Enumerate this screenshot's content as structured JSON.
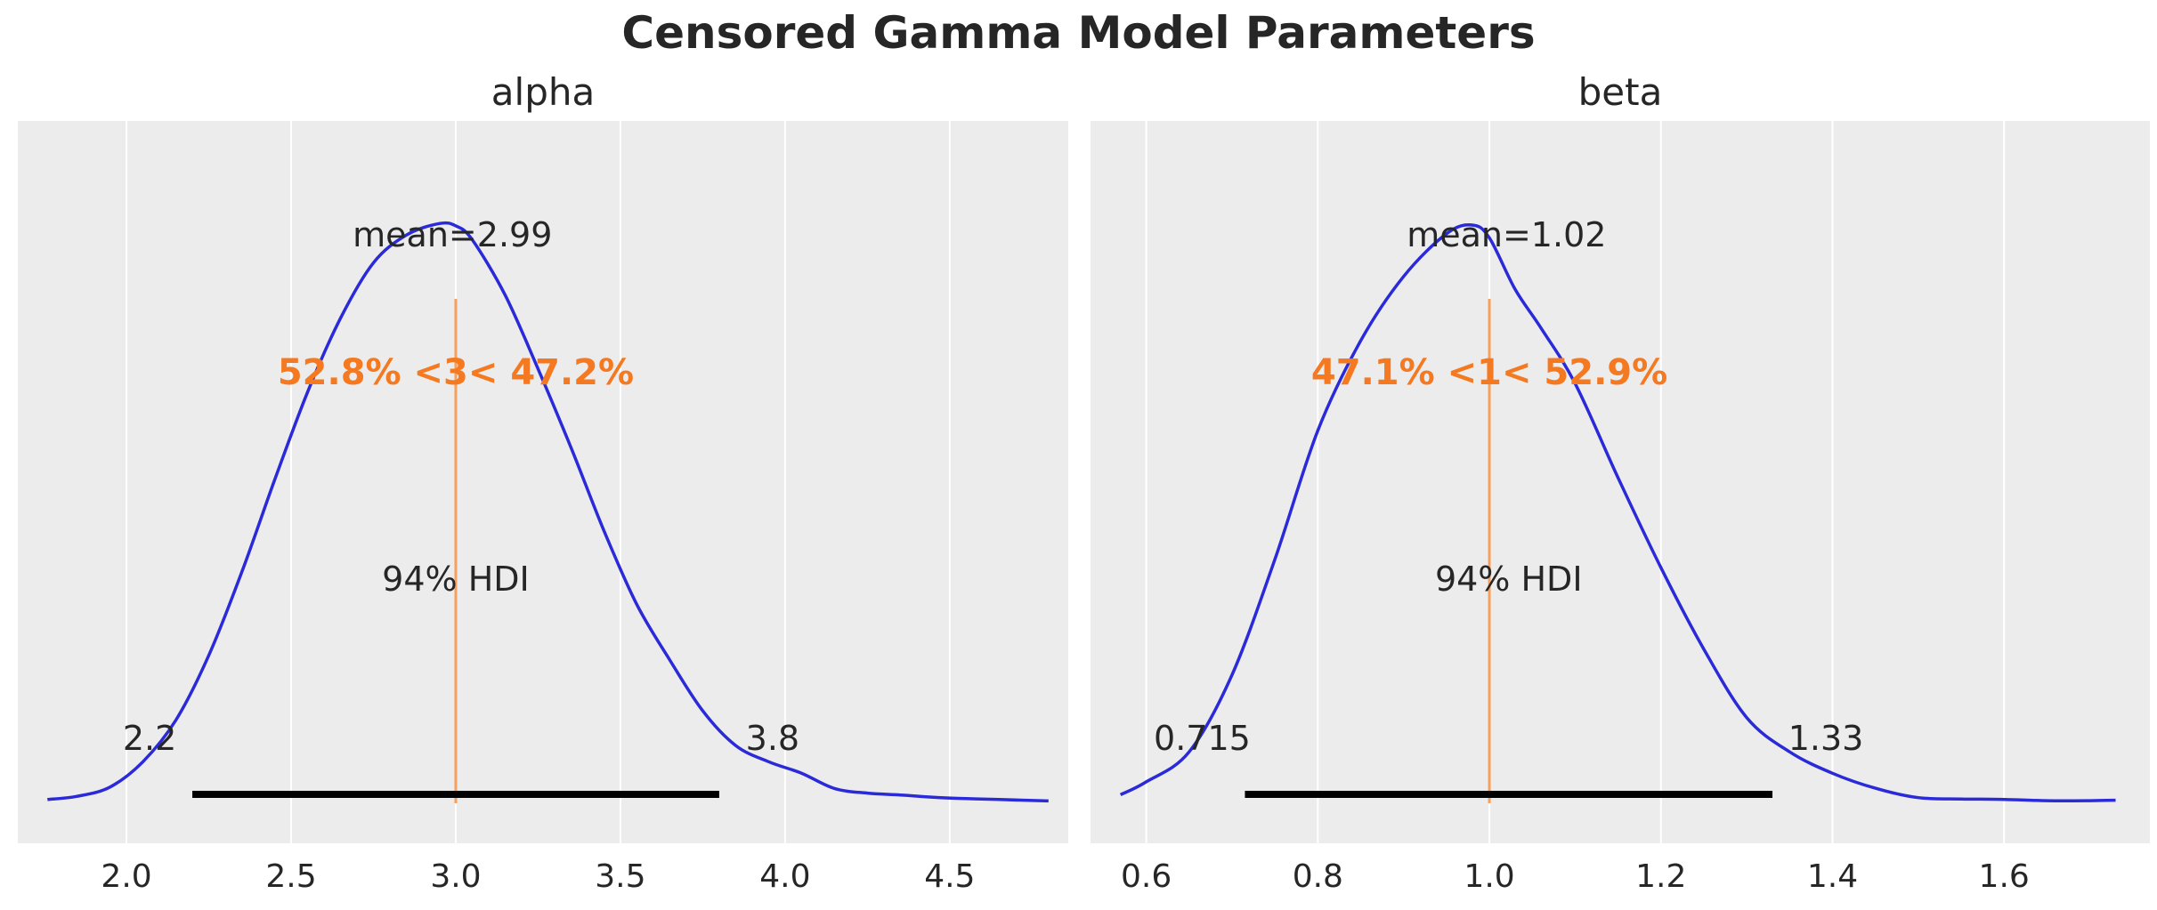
{
  "figure": {
    "title": "Censored Gamma Model Parameters"
  },
  "colors": {
    "panel_background": "#ececec",
    "grid": "#ffffff",
    "density_line": "#2a2ad8",
    "reference_line": "#f5a05e",
    "reference_text": "#f47920",
    "hdi_bar": "#000000",
    "text": "#262626"
  },
  "chart_data": [
    {
      "type": "line",
      "title": "alpha",
      "xlabel": "",
      "ylabel": "",
      "xlim": [
        1.67,
        4.86
      ],
      "xticks": [
        2.0,
        2.5,
        3.0,
        3.5,
        4.0,
        4.5
      ],
      "xtick_labels": [
        "2.0",
        "2.5",
        "3.0",
        "3.5",
        "4.0",
        "4.5"
      ],
      "grid": true,
      "mean": 2.99,
      "mean_label": "mean=2.99",
      "hdi": [
        2.2,
        3.8
      ],
      "hdi_label": "94% HDI",
      "hdi_low_label": "2.2",
      "hdi_high_label": "3.8",
      "ref_val": 3,
      "ref_label": "52.8% <3< 47.2%",
      "density": {
        "x": [
          1.76,
          1.85,
          1.95,
          2.05,
          2.15,
          2.25,
          2.35,
          2.45,
          2.55,
          2.65,
          2.75,
          2.85,
          2.95,
          3.0,
          3.05,
          3.15,
          3.25,
          3.35,
          3.45,
          3.55,
          3.65,
          3.75,
          3.85,
          3.95,
          4.05,
          4.15,
          4.25,
          4.35,
          4.45,
          4.55,
          4.65,
          4.8
        ],
        "y": [
          0.008,
          0.015,
          0.035,
          0.09,
          0.18,
          0.32,
          0.5,
          0.7,
          0.89,
          1.05,
          1.17,
          1.23,
          1.255,
          1.25,
          1.22,
          1.1,
          0.94,
          0.77,
          0.59,
          0.43,
          0.31,
          0.2,
          0.125,
          0.09,
          0.065,
          0.032,
          0.022,
          0.018,
          0.013,
          0.01,
          0.008,
          0.005
        ]
      }
    },
    {
      "type": "line",
      "title": "beta",
      "xlabel": "",
      "ylabel": "",
      "xlim": [
        0.535,
        1.77
      ],
      "xticks": [
        0.6,
        0.8,
        1.0,
        1.2,
        1.4,
        1.6
      ],
      "xtick_labels": [
        "0.6",
        "0.8",
        "1.0",
        "1.2",
        "1.4",
        "1.6"
      ],
      "grid": true,
      "mean": 1.02,
      "mean_label": "mean=1.02",
      "hdi": [
        0.715,
        1.33
      ],
      "hdi_label": "94% HDI",
      "hdi_low_label": "0.715",
      "hdi_high_label": "1.33",
      "ref_val": 1,
      "ref_label": "47.1% <1< 52.9%",
      "density": {
        "x": [
          0.57,
          0.6,
          0.65,
          0.7,
          0.75,
          0.8,
          0.85,
          0.9,
          0.95,
          0.98,
          1.0,
          1.03,
          1.06,
          1.1,
          1.15,
          1.2,
          1.25,
          1.3,
          1.35,
          1.4,
          1.45,
          1.5,
          1.55,
          1.6,
          1.65,
          1.7,
          1.73
        ],
        "y": [
          0.02,
          0.05,
          0.12,
          0.3,
          0.57,
          0.87,
          1.08,
          1.23,
          1.33,
          1.35,
          1.32,
          1.2,
          1.11,
          0.98,
          0.76,
          0.55,
          0.36,
          0.2,
          0.12,
          0.07,
          0.035,
          0.013,
          0.01,
          0.009,
          0.006,
          0.006,
          0.007
        ]
      }
    }
  ]
}
